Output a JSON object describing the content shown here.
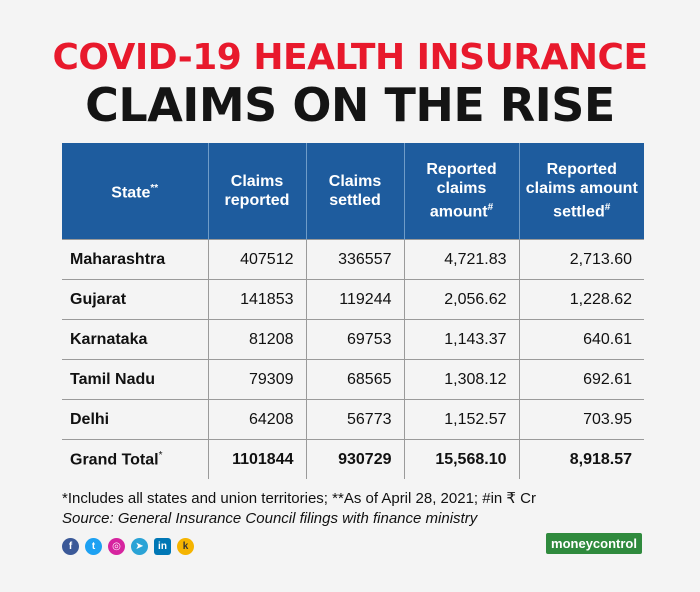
{
  "header": {
    "line1": "COVID-19 HEALTH INSURANCE",
    "line2": "CLAIMS ON THE RISE"
  },
  "table": {
    "columns": [
      {
        "text": "State",
        "sup": "**"
      },
      {
        "text": "Claims reported",
        "sup": ""
      },
      {
        "text": "Claims settled",
        "sup": ""
      },
      {
        "text": "Reported claims amount",
        "sup": "#"
      },
      {
        "text": "Reported claims amount settled",
        "sup": "#"
      }
    ],
    "rows": [
      [
        "Maharashtra",
        "407512",
        "336557",
        "4,721.83",
        "2,713.60"
      ],
      [
        "Gujarat",
        "141853",
        "119244",
        "2,056.62",
        "1,228.62"
      ],
      [
        "Karnataka",
        "81208",
        "69753",
        "1,143.37",
        "640.61"
      ],
      [
        "Tamil Nadu",
        "79309",
        "68565",
        "1,308.12",
        "692.61"
      ],
      [
        "Delhi",
        "64208",
        "56773",
        "1,152.57",
        "703.95"
      ]
    ],
    "total": {
      "label": "Grand Total",
      "label_sup": "*",
      "values": [
        "1101844",
        "930729",
        "15,568.10",
        "8,918.57"
      ]
    }
  },
  "footer": {
    "note": "*Includes all states and union territories; **As of April 28, 2021; #in ₹ Cr",
    "source": "Source: General Insurance Council filings with finance ministry",
    "brand": "moneycontrol"
  },
  "social": [
    {
      "name": "facebook-icon",
      "glyph": "f"
    },
    {
      "name": "twitter-icon",
      "glyph": "t"
    },
    {
      "name": "instagram-icon",
      "glyph": "◎"
    },
    {
      "name": "telegram-icon",
      "glyph": "➤"
    },
    {
      "name": "linkedin-icon",
      "glyph": "in"
    },
    {
      "name": "koo-icon",
      "glyph": "k"
    }
  ]
}
